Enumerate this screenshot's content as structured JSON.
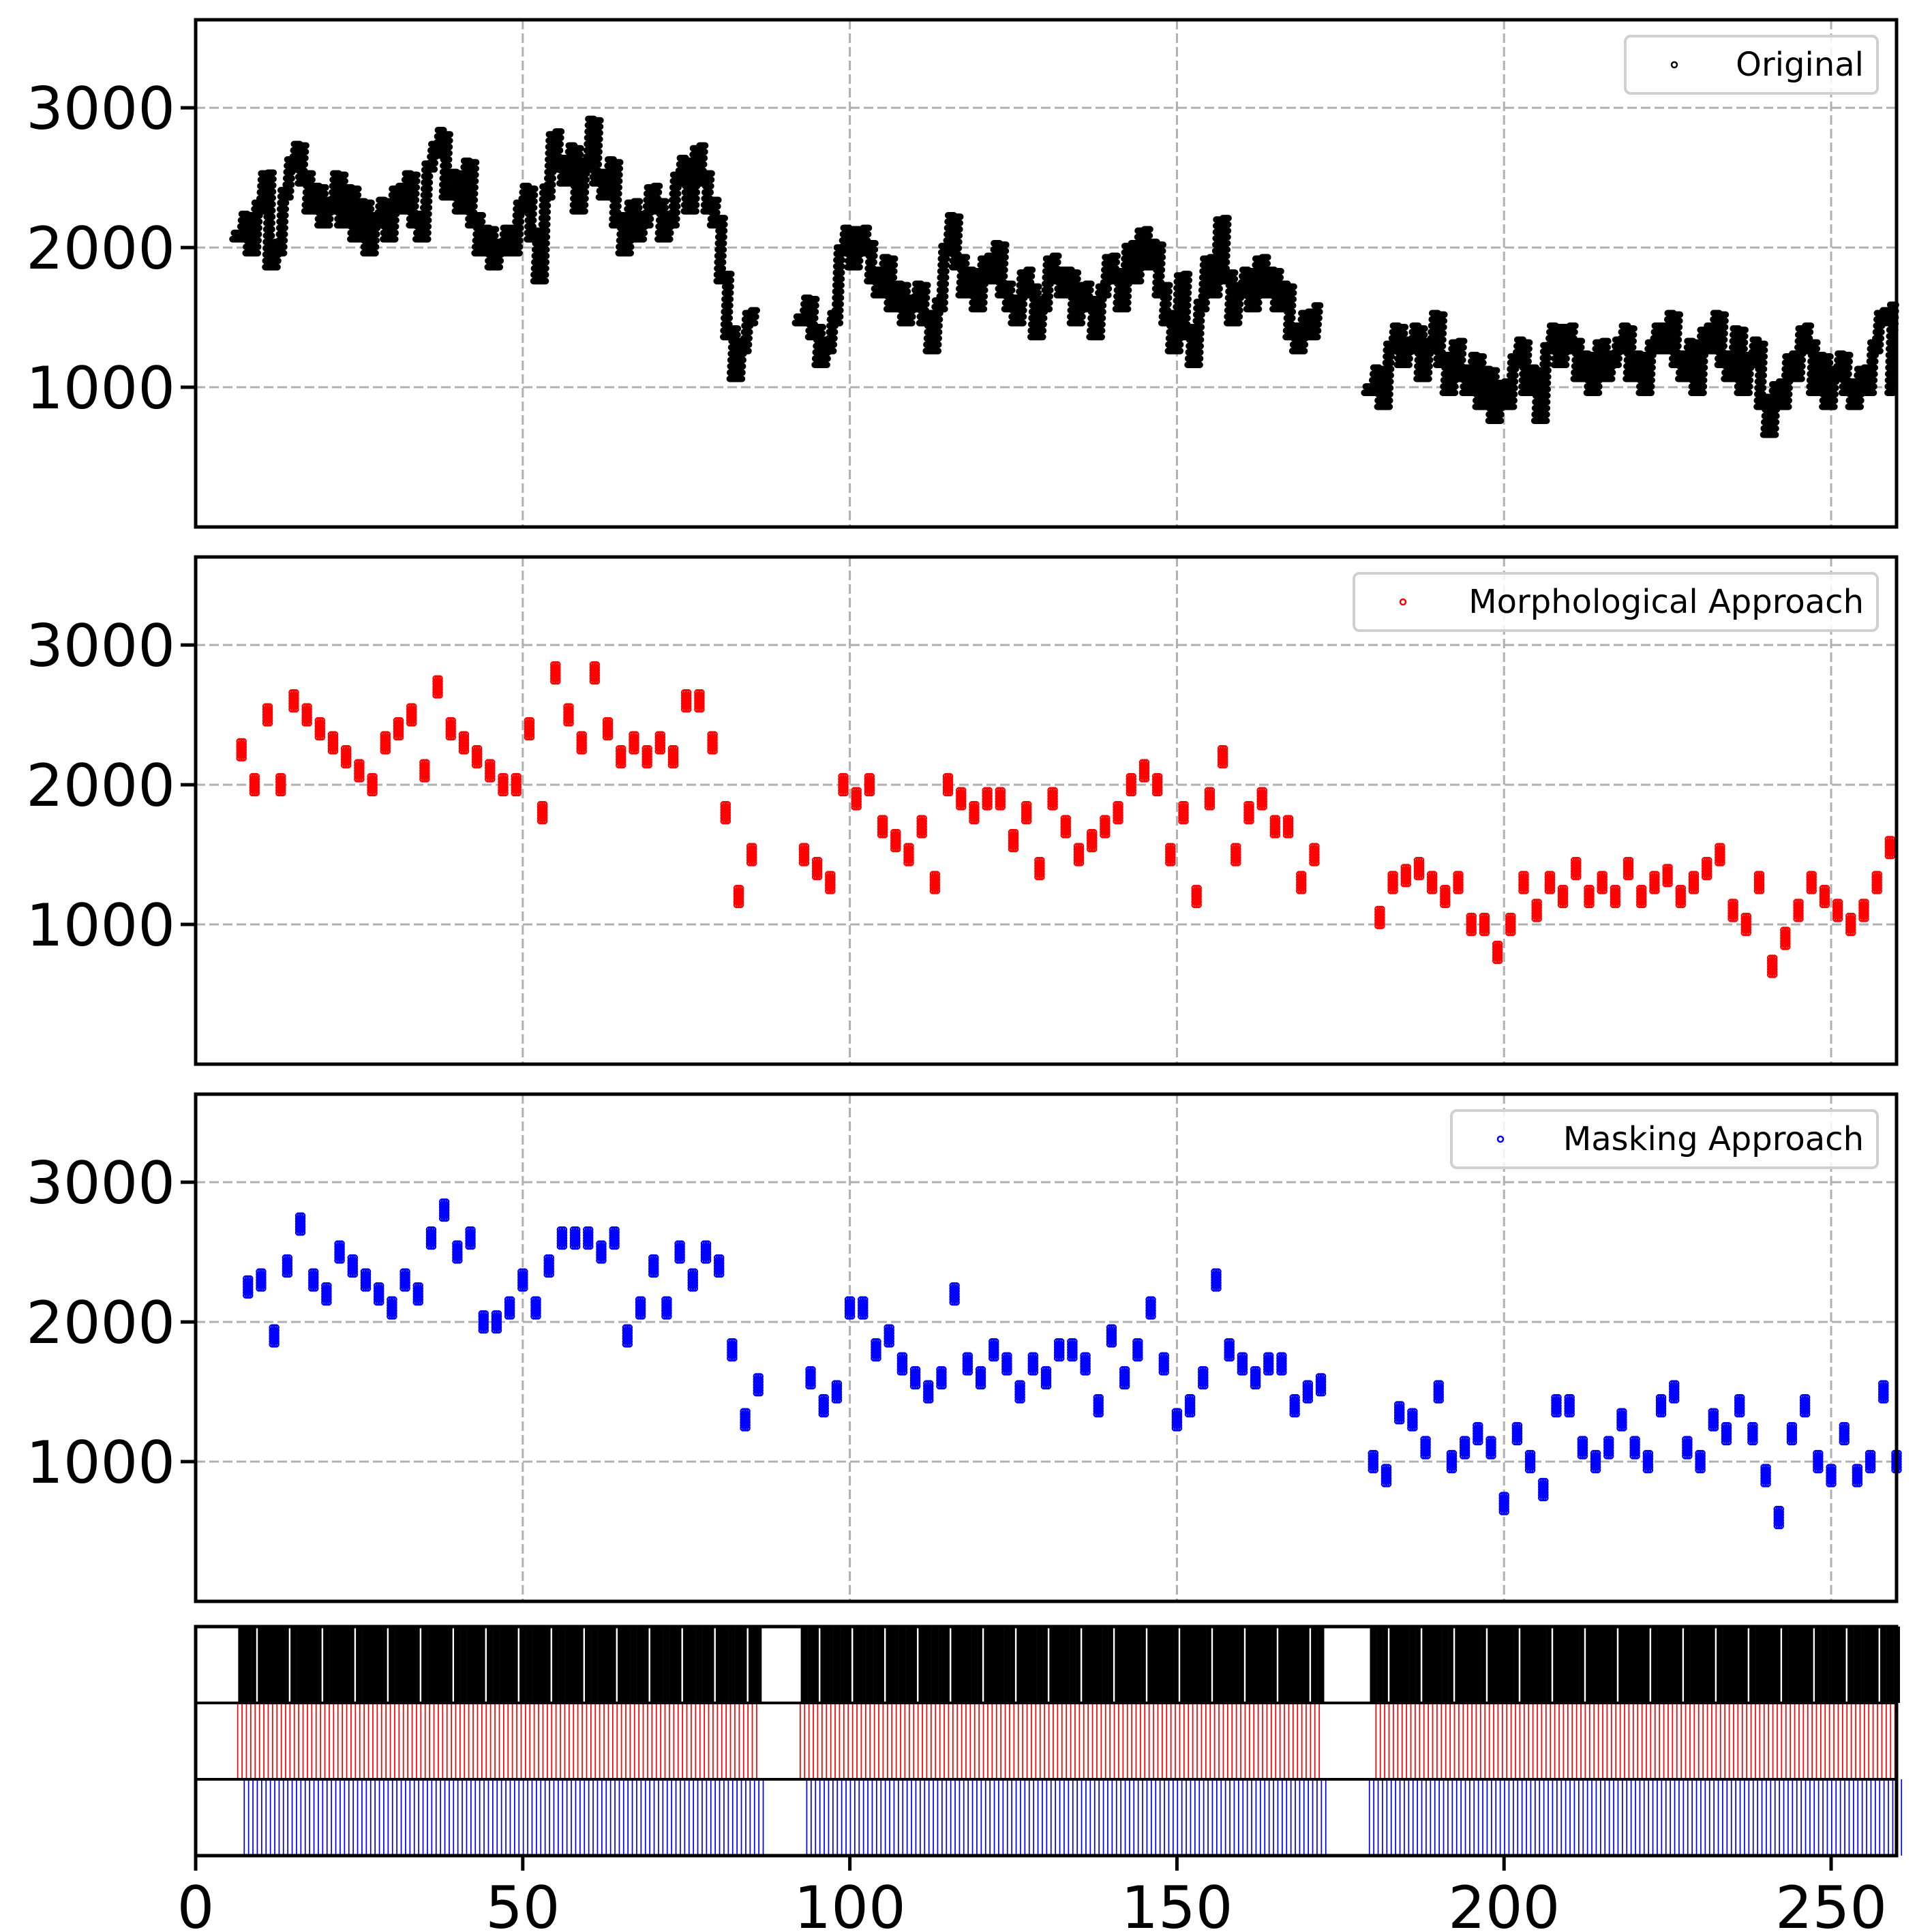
{
  "chart_data": {
    "type": "scatter",
    "title": "",
    "xlabel": "",
    "ylabel": "",
    "xlim": [
      0,
      260
    ],
    "ylim": [
      0,
      3630
    ],
    "grid": true,
    "x_ticks": [
      0,
      50,
      100,
      150,
      200,
      250
    ],
    "x_tick_labels": [
      "0",
      "50",
      "100",
      "150",
      "200",
      "250"
    ],
    "y_ticks": [
      1000,
      2000,
      3000
    ],
    "y_tick_labels": [
      "1000",
      "2000",
      "3000"
    ],
    "panels": [
      {
        "name": "Original",
        "legend": "Original",
        "legend_position": "top-right",
        "color": "#000000",
        "segments": [
          {
            "x_start": 7,
            "step": 1,
            "y": [
              2100,
              2200,
              2000,
              2300,
              2500,
              1900,
              2000,
              2400,
              2600,
              2700,
              2500,
              2300,
              2400,
              2200,
              2300,
              2500,
              2200,
              2400,
              2100,
              2300,
              2000,
              2200,
              2300,
              2100,
              2400,
              2300,
              2500,
              2200,
              2100,
              2600,
              2700,
              2800,
              2400,
              2500,
              2300,
              2600,
              2200,
              2000,
              2100,
              1900,
              2000,
              2100,
              2000,
              2300,
              2400,
              2100,
              1800,
              2400,
              2800,
              2600,
              2500,
              2700,
              2300,
              2600,
              2900,
              2500,
              2400,
              2600,
              2200,
              2000,
              2300,
              2100,
              2200,
              2400,
              2300,
              2100,
              2200,
              2500,
              2600,
              2300,
              2700,
              2500,
              2300,
              2200,
              1800,
              1400,
              1100,
              1300,
              1500,
              1550
            ]
          },
          {
            "x_start": 93,
            "step": 1,
            "y": [
              1500,
              1600,
              1400,
              1200,
              1300,
              1500,
              2000,
              2100,
              1900,
              2100,
              2000,
              1800,
              1700,
              1900,
              1600,
              1700,
              1500,
              1600,
              1700,
              1500,
              1300,
              1600,
              2000,
              2200,
              1900,
              1700,
              1800,
              1600,
              1900,
              1800,
              2000,
              1700,
              1600,
              1500,
              1800,
              1700,
              1400,
              1600,
              1900,
              1800,
              1700,
              1800,
              1500,
              1700,
              1600,
              1400,
              1700,
              1900,
              1800,
              1600,
              2000,
              1800,
              2100,
              1900,
              2000,
              1700,
              1500,
              1300,
              1800,
              1400,
              1200,
              1600,
              1900,
              1700,
              2200,
              1800,
              1500,
              1700,
              1800,
              1600,
              1900,
              1700,
              1800,
              1600,
              1700,
              1400,
              1300,
              1500,
              1400,
              1550
            ]
          },
          {
            "x_start": 180,
            "step": 1,
            "y": [
              1000,
              1100,
              900,
              1300,
              1400,
              1200,
              1300,
              1400,
              1100,
              1300,
              1500,
              1200,
              1000,
              1300,
              1100,
              1000,
              1200,
              900,
              1100,
              800,
              1000,
              900,
              1200,
              1300,
              1000,
              1100,
              800,
              1300,
              1400,
              1200,
              1400,
              1300,
              1100,
              1200,
              1000,
              1300,
              1100,
              1200,
              1300,
              1400,
              1100,
              1200,
              1000,
              1300,
              1400,
              1300,
              1500,
              1200,
              1100,
              1300,
              1000,
              1400,
              1300,
              1500,
              1200,
              1100,
              1400,
              1000,
              1200,
              1300,
              900,
              700,
              1000,
              900,
              1200,
              1100,
              1400,
              1300,
              1000,
              1200,
              900,
              1100,
              1200,
              1000,
              900,
              1100,
              1000,
              1300,
              1500,
              1550,
              1000
            ]
          }
        ]
      },
      {
        "name": "Morphological Approach",
        "legend": "Morphological Approach",
        "legend_position": "top-right",
        "color": "#ff0000",
        "segments": [
          {
            "x_start": 7,
            "step": 2,
            "y": [
              2250,
              2000,
              2500,
              2000,
              2600,
              2500,
              2400,
              2300,
              2200,
              2100,
              2000,
              2300,
              2400,
              2500,
              2100,
              2700,
              2400,
              2300,
              2200,
              2100,
              2000,
              2000,
              2400,
              1800,
              2800,
              2500,
              2300,
              2800,
              2400,
              2200,
              2300,
              2200,
              2300,
              2200,
              2600,
              2600,
              2300,
              1800,
              1200,
              1500
            ]
          },
          {
            "x_start": 93,
            "step": 2,
            "y": [
              1500,
              1400,
              1300,
              2000,
              1900,
              2000,
              1700,
              1600,
              1500,
              1700,
              1300,
              2000,
              1900,
              1800,
              1900,
              1900,
              1600,
              1800,
              1400,
              1900,
              1700,
              1500,
              1600,
              1700,
              1800,
              2000,
              2100,
              2000,
              1500,
              1800,
              1200,
              1900,
              2200,
              1500,
              1800,
              1900,
              1700,
              1700,
              1300,
              1500
            ]
          },
          {
            "x_start": 181,
            "step": 2,
            "y": [
              1050,
              1300,
              1350,
              1400,
              1300,
              1200,
              1300,
              1000,
              1000,
              800,
              1000,
              1300,
              1100,
              1300,
              1200,
              1400,
              1200,
              1300,
              1200,
              1400,
              1200,
              1300,
              1350,
              1200,
              1300,
              1400,
              1500,
              1100,
              1000,
              1300,
              700,
              900,
              1100,
              1300,
              1200,
              1100,
              1000,
              1100,
              1300,
              1550
            ]
          }
        ]
      },
      {
        "name": "Masking Approach",
        "legend": "Masking Approach",
        "legend_position": "top-right",
        "color": "#0000ff",
        "segments": [
          {
            "x_start": 8,
            "step": 2,
            "y": [
              2250,
              2300,
              1900,
              2400,
              2700,
              2300,
              2200,
              2500,
              2400,
              2300,
              2200,
              2100,
              2300,
              2200,
              2600,
              2800,
              2500,
              2600,
              2000,
              2000,
              2100,
              2300,
              2100,
              2400,
              2600,
              2600,
              2600,
              2500,
              2600,
              1900,
              2100,
              2400,
              2100,
              2500,
              2300,
              2500,
              2400,
              1800,
              1300,
              1550
            ]
          },
          {
            "x_start": 94,
            "step": 2,
            "y": [
              1600,
              1400,
              1500,
              2100,
              2100,
              1800,
              1900,
              1700,
              1600,
              1500,
              1600,
              2200,
              1700,
              1600,
              1800,
              1700,
              1500,
              1700,
              1600,
              1800,
              1800,
              1700,
              1400,
              1900,
              1600,
              1800,
              2100,
              1700,
              1300,
              1400,
              1600,
              2300,
              1800,
              1700,
              1600,
              1700,
              1700,
              1400,
              1500,
              1550
            ]
          },
          {
            "x_start": 180,
            "step": 2,
            "y": [
              1000,
              900,
              1350,
              1300,
              1100,
              1500,
              1000,
              1100,
              1200,
              1100,
              700,
              1200,
              1000,
              800,
              1400,
              1400,
              1100,
              1000,
              1100,
              1300,
              1100,
              1000,
              1400,
              1500,
              1100,
              1000,
              1300,
              1200,
              1400,
              1200,
              900,
              600,
              1200,
              1400,
              1000,
              900,
              1200,
              900,
              1000,
              1500,
              1000
            ]
          }
        ]
      }
    ],
    "event_strip": {
      "rows": [
        "Original",
        "Morphological Approach",
        "Masking Approach"
      ],
      "colors": [
        "#000000",
        "#ff0000",
        "#0000ff"
      ]
    },
    "colors": {
      "grid": "#b0b0b0",
      "axis": "#000000"
    }
  }
}
